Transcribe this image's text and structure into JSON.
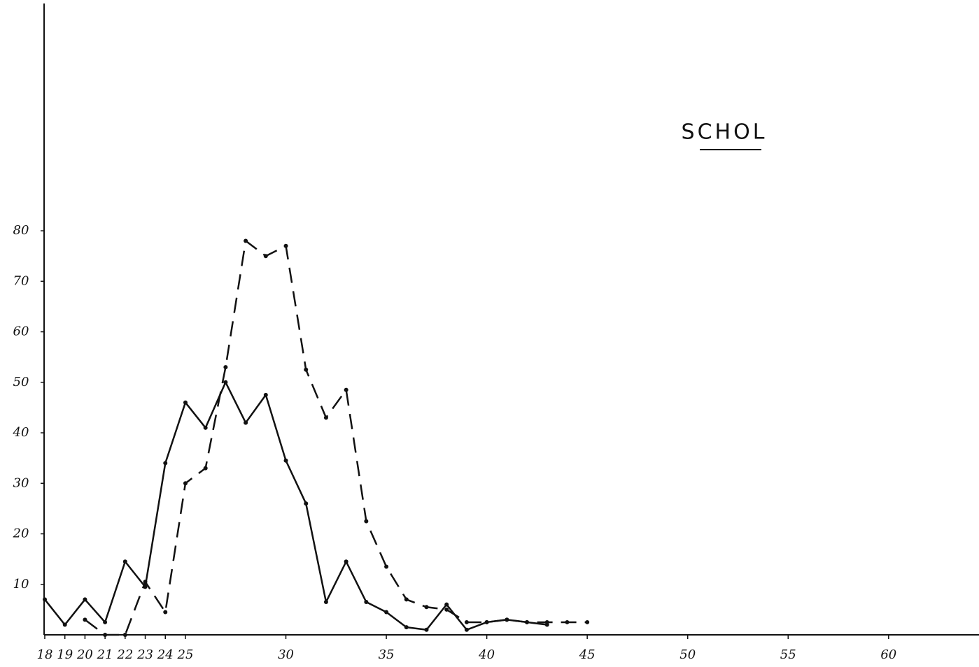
{
  "chart_data": {
    "type": "line",
    "title": "SCHOL",
    "x": [
      18,
      19,
      20,
      21,
      22,
      23,
      24,
      25,
      26,
      27,
      28,
      29,
      30,
      31,
      32,
      33,
      34,
      35,
      36,
      37,
      38,
      39,
      40,
      41,
      42,
      43,
      44,
      45
    ],
    "series": [
      {
        "name": "solid",
        "color": "#111111",
        "dash": false,
        "values": [
          7,
          2,
          7,
          2.5,
          14.5,
          9.5,
          34,
          46,
          41,
          50,
          42,
          47.5,
          34.5,
          26,
          6.5,
          14.5,
          6.5,
          4.5,
          1.5,
          1,
          6,
          1,
          2.5,
          3,
          2.5,
          2,
          null,
          null
        ]
      },
      {
        "name": "dashed",
        "color": "#111111",
        "dash": true,
        "values": [
          null,
          null,
          3,
          0,
          0,
          10.5,
          4.5,
          30,
          33,
          53,
          78,
          75,
          77,
          52.5,
          43,
          48.5,
          22.5,
          13.5,
          7,
          5.5,
          5,
          2.5,
          2.5,
          3,
          2.5,
          2.5,
          2.5,
          2.5
        ]
      }
    ],
    "xlim": [
      18,
      64.5
    ],
    "ylim": [
      0,
      125
    ],
    "xticks": [
      18,
      19,
      20,
      21,
      22,
      23,
      24,
      25,
      30,
      35,
      40,
      45,
      50,
      55,
      60
    ],
    "yticks": [
      10,
      20,
      30,
      40,
      50,
      60,
      70,
      80
    ]
  }
}
